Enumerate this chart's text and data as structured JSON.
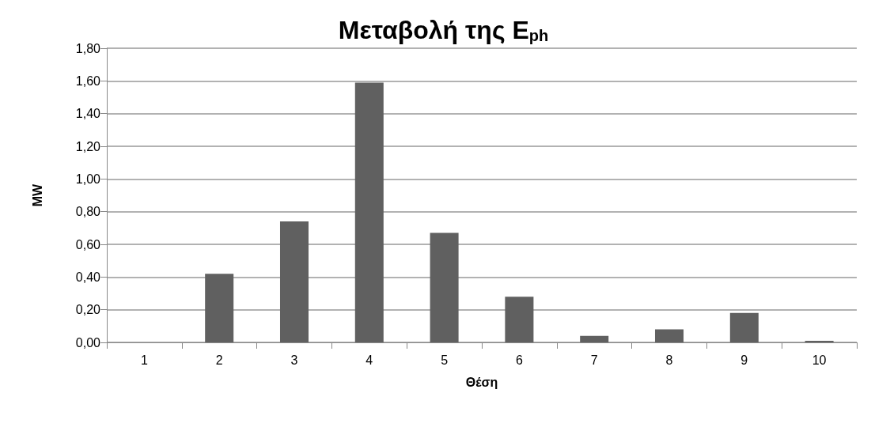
{
  "chart_data": {
    "type": "bar",
    "title": "Μεταβολή της E$_{ph}$",
    "xlabel": "Θέση",
    "ylabel": "MW",
    "categories": [
      "1",
      "2",
      "3",
      "4",
      "5",
      "6",
      "7",
      "8",
      "9",
      "10"
    ],
    "values": [
      0,
      0.42,
      0.74,
      1.59,
      0.67,
      0.28,
      0.04,
      0.08,
      0.18,
      0.01
    ],
    "color": "#606060",
    "ylim": [
      0,
      1.8
    ],
    "yticks": [
      {
        "value": 0,
        "label": "0,00"
      },
      {
        "value": 0.2,
        "label": "0,20"
      },
      {
        "value": 0.4,
        "label": "0,40"
      },
      {
        "value": 0.6,
        "label": "0,60"
      },
      {
        "value": 0.8,
        "label": "0,80"
      },
      {
        "value": 1,
        "label": "1,00"
      },
      {
        "value": 1.2,
        "label": "1,20"
      },
      {
        "value": 1.4,
        "label": "1,40"
      },
      {
        "value": 1.6,
        "label": "1,60"
      },
      {
        "value": 1.8,
        "label": "1,80"
      }
    ],
    "grid": "y"
  }
}
